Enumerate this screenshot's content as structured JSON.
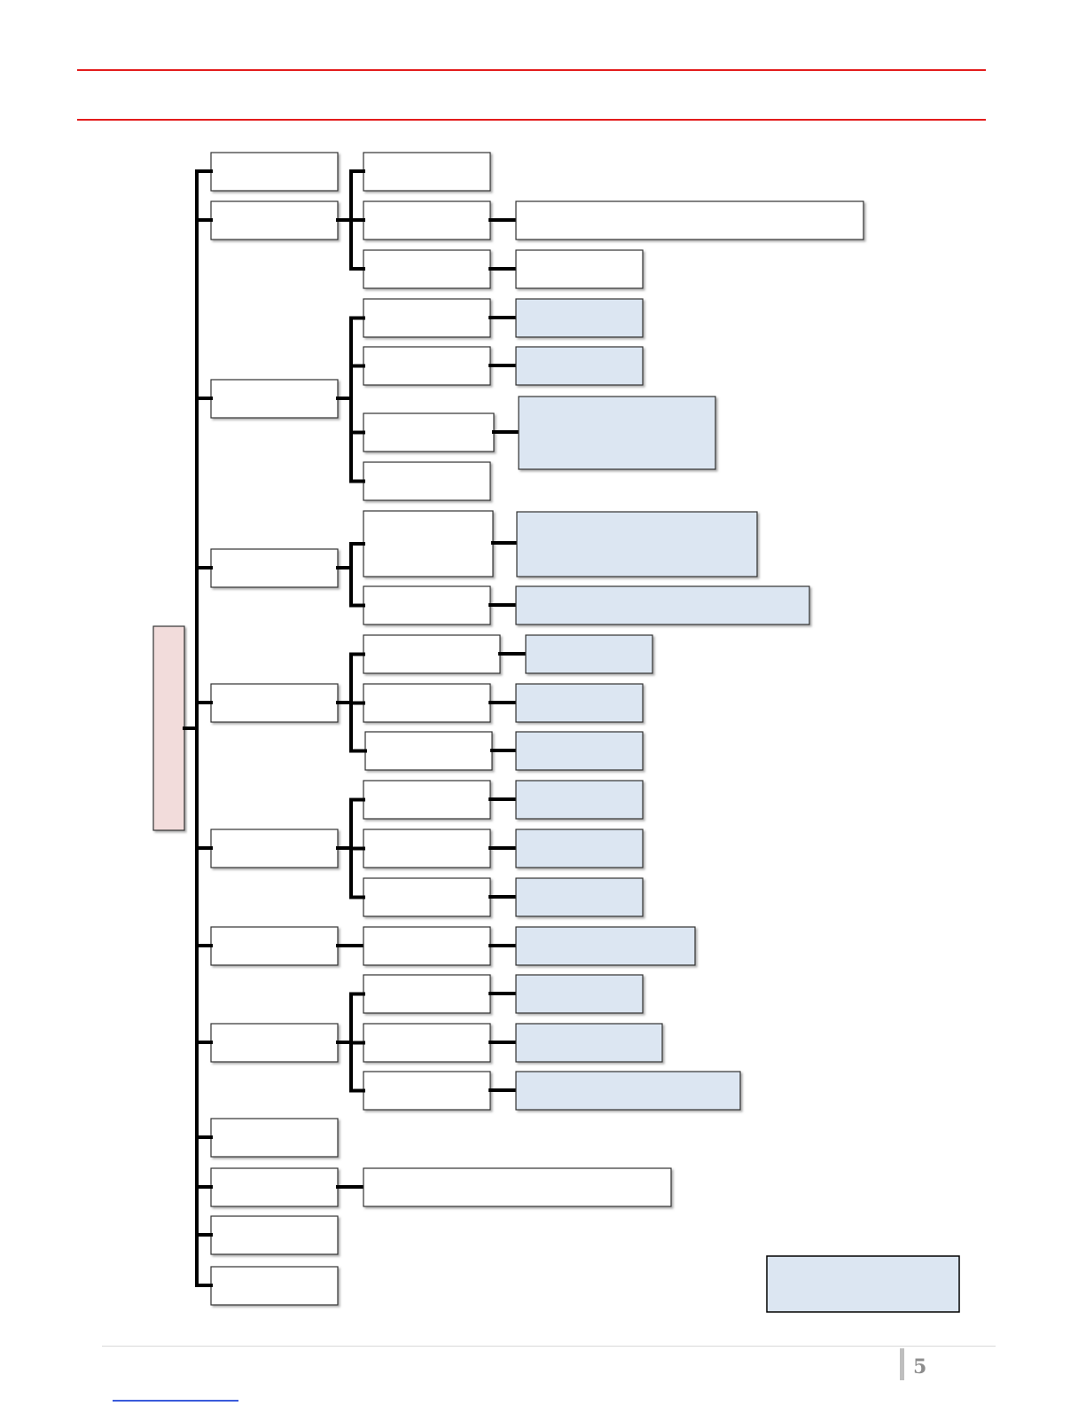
{
  "header": {
    "rule_color": "#e31c1c"
  },
  "diagram": {
    "colors": {
      "connector": "#000000",
      "box_border": "#333333",
      "box_fill": "#ffffff",
      "leaf_fill": "#dce6f2",
      "root_fill": "#f2dcdb",
      "legend_fill": "#dce6f2"
    },
    "root": {
      "label": ""
    },
    "legend": {
      "label": ""
    }
  },
  "footer": {
    "page_number": "5"
  }
}
